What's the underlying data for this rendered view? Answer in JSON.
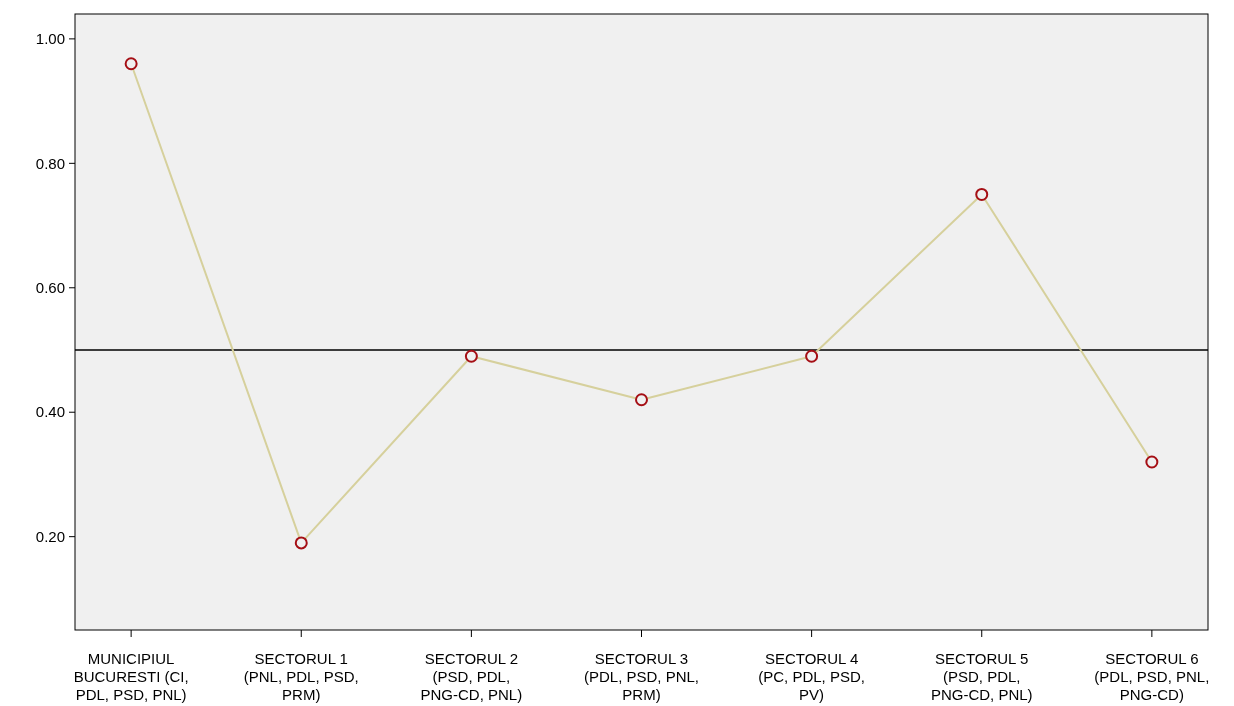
{
  "chart_data": {
    "type": "line",
    "categories": [
      "MUNICIPIUL BUCURESTI (CI, PDL, PSD, PNL)",
      "SECTORUL 1 (PNL, PDL, PSD, PRM)",
      "SECTORUL 2 (PSD, PDL, PNG-CD, PNL)",
      "SECTORUL 3 (PDL, PSD, PNL, PRM)",
      "SECTORUL 4 (PC, PDL, PSD, PV)",
      "SECTORUL 5 (PSD, PDL, PNG-CD, PNL)",
      "SECTORUL 6 (PDL, PSD, PNL, PNG-CD)"
    ],
    "series": [
      {
        "color": "#d6d09c",
        "values": [
          0.96,
          0.19,
          0.49,
          0.42,
          0.49,
          0.75,
          0.32
        ]
      }
    ],
    "ylim": [
      0.05,
      1.04
    ],
    "yticks": [
      {
        "value": 0.2,
        "label": "0.20"
      },
      {
        "value": 0.4,
        "label": "0.40"
      },
      {
        "value": 0.6,
        "label": "0.60"
      },
      {
        "value": 0.8,
        "label": "0.80"
      },
      {
        "value": 1,
        "label": "1.00"
      }
    ],
    "ref_lines": [
      {
        "axis": "y",
        "value": 0.5,
        "color": "#000000"
      }
    ],
    "marker": "circle",
    "line_style": "solid",
    "grid": false
  }
}
